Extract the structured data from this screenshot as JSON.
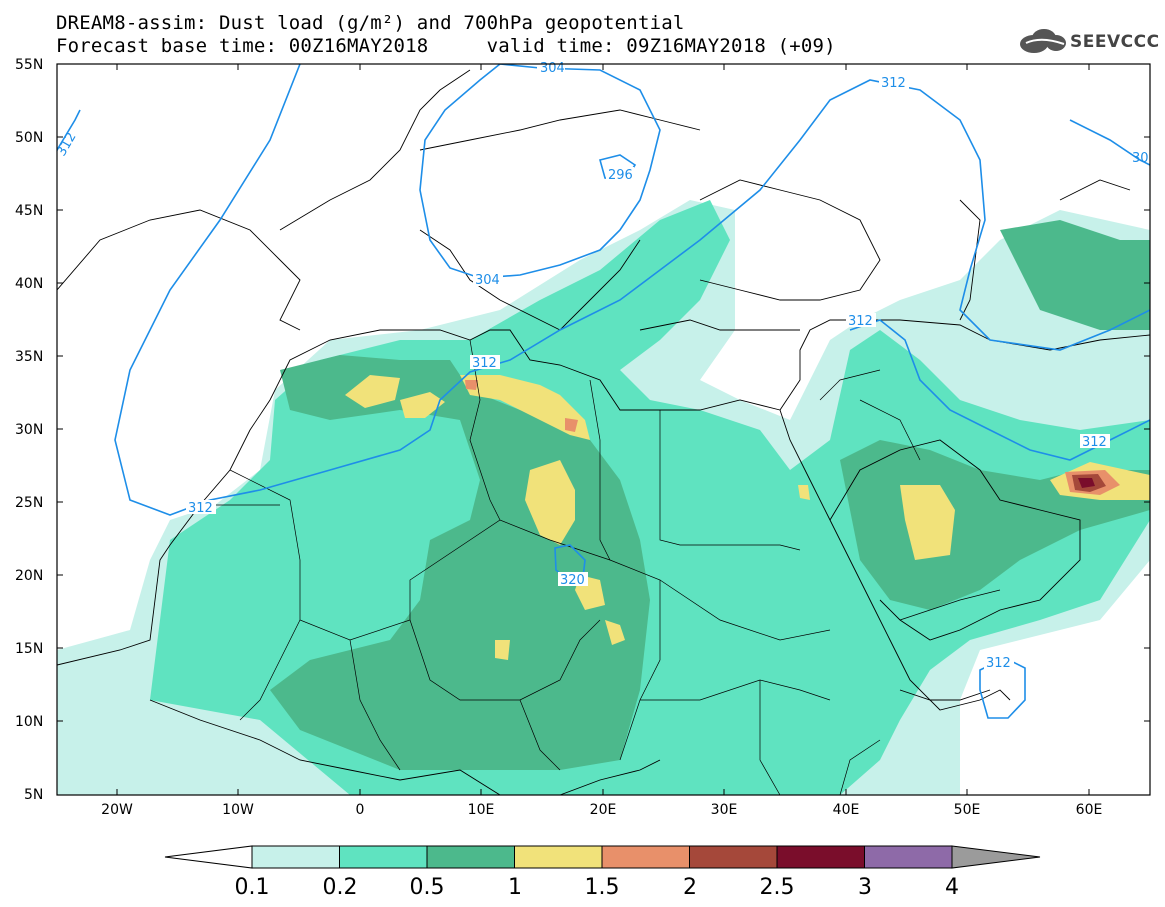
{
  "header": {
    "line1": "DREAM8-assim: Dust load (g/m²) and 700hPa geopotential",
    "line2": "Forecast base time: 00Z16MAY2018     valid time: 09Z16MAY2018 (+09)"
  },
  "logo": {
    "text": "SEEVCCC",
    "icon": "cloud-icon"
  },
  "axes": {
    "lat_labels": [
      "55N",
      "50N",
      "45N",
      "40N",
      "35N",
      "30N",
      "25N",
      "20N",
      "15N",
      "10N",
      "5N"
    ],
    "lon_labels": [
      "20W",
      "10W",
      "0",
      "10E",
      "20E",
      "30E",
      "40E",
      "50E",
      "60E"
    ]
  },
  "contours": {
    "labels": [
      "304",
      "296",
      "312",
      "312",
      "312",
      "304",
      "312",
      "320",
      "312",
      "312",
      "312",
      "30"
    ]
  },
  "legend": {
    "ticks": [
      "0.1",
      "0.2",
      "0.5",
      "1",
      "1.5",
      "2",
      "2.5",
      "3",
      "4"
    ],
    "colors": [
      "#c7f1ea",
      "#5fe3c0",
      "#4cb98c",
      "#f1e27a",
      "#e8906a",
      "#a5483a",
      "#7a0d2b",
      "#8e6aa8",
      "#9b9b9b"
    ]
  },
  "colors": {
    "contour": "#1e8ee8",
    "dust_0_1": "#c7f1ea",
    "dust_0_2": "#5fe3c0",
    "dust_0_5": "#4cb98c",
    "dust_1": "#f1e27a",
    "dust_1_5": "#e8906a",
    "dust_2": "#a5483a",
    "dust_2_5": "#7a0d2b"
  }
}
